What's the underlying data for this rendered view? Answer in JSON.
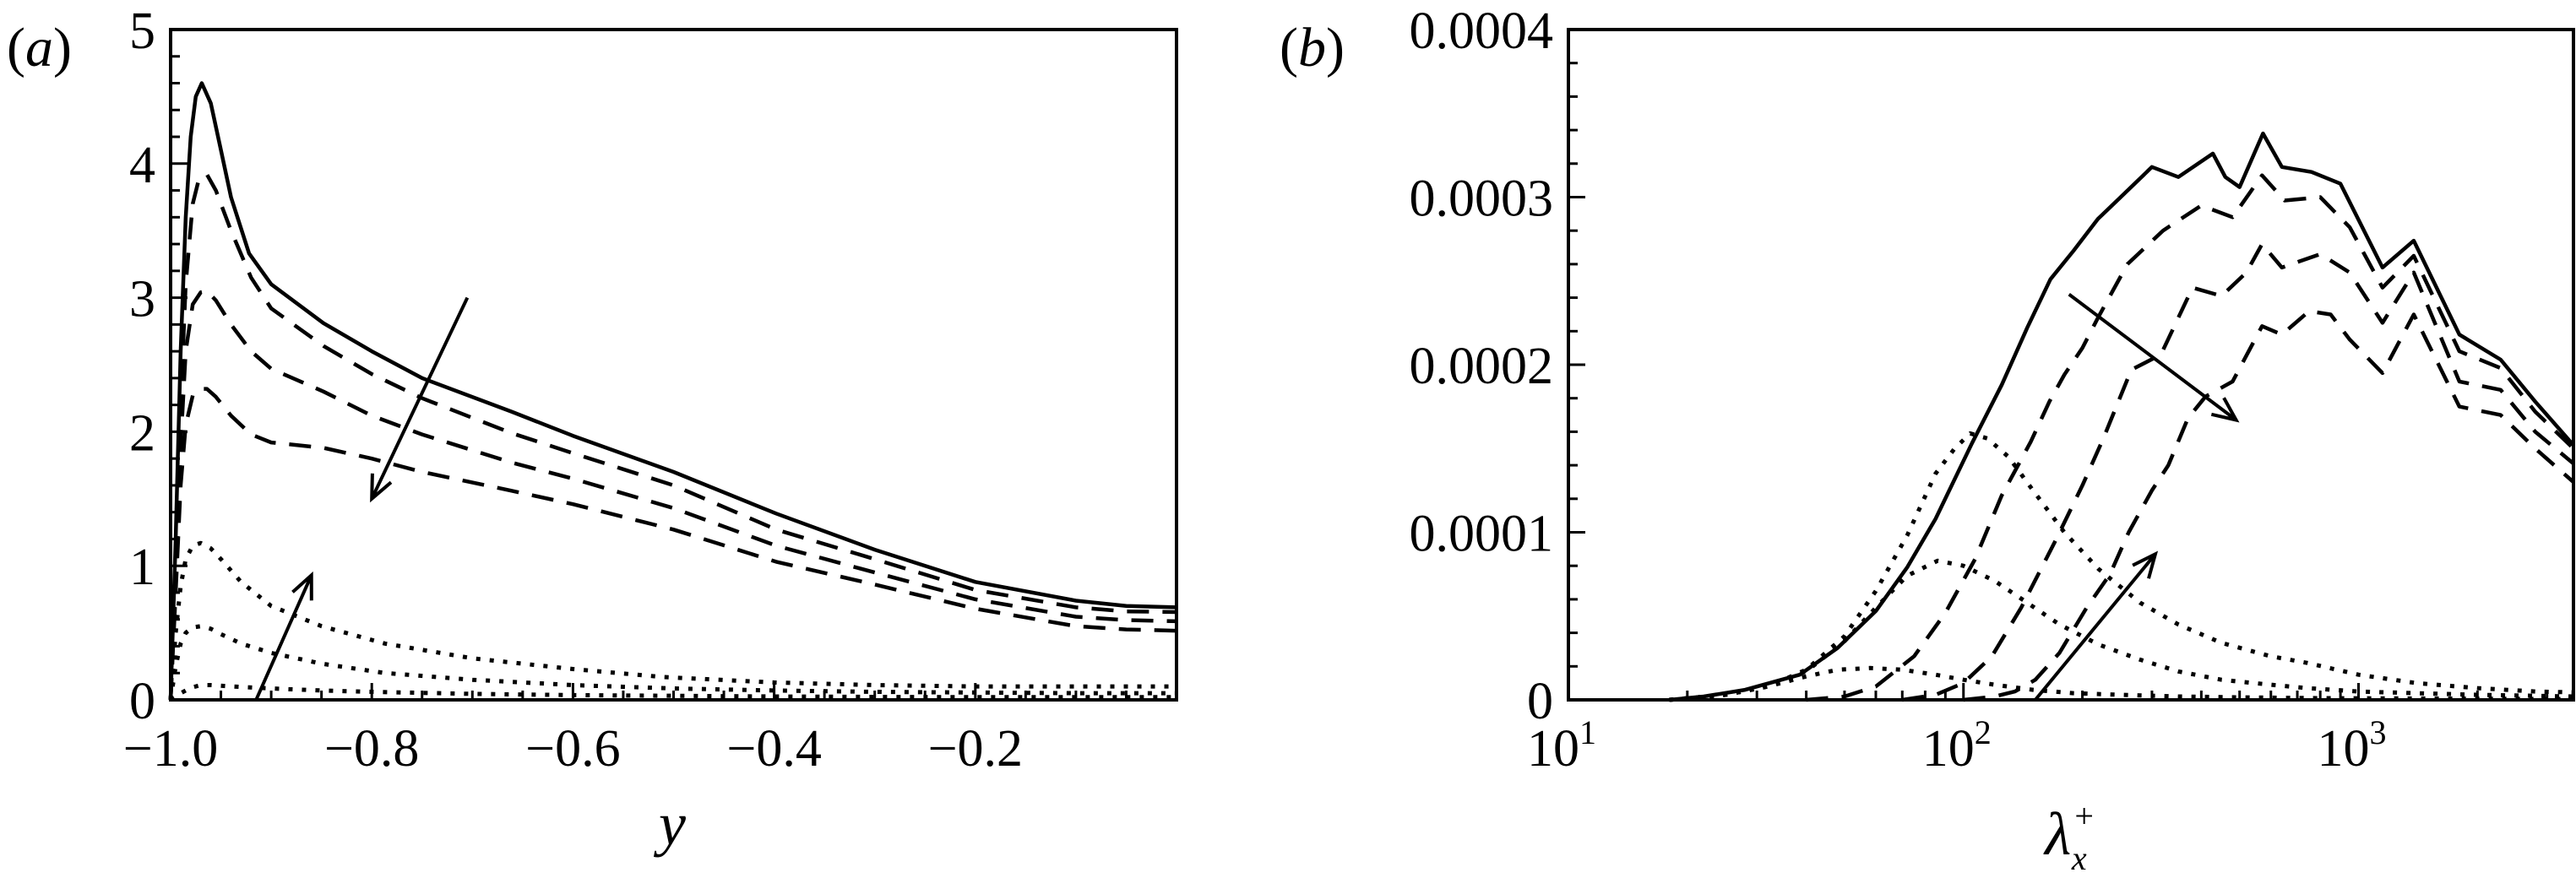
{
  "figure": {
    "panels": [
      {
        "id": "a",
        "label": "(a)"
      },
      {
        "id": "b",
        "label": "(b)"
      }
    ]
  },
  "chart_data": [
    {
      "panel": "(a)",
      "type": "line",
      "title": "",
      "xlabel": "y",
      "ylabel": "",
      "xlim": [
        -1.0,
        0.0
      ],
      "ylim": [
        0,
        5
      ],
      "grid": false,
      "legend": "none",
      "xticks": [
        -1.0,
        -0.8,
        -0.6,
        -0.4,
        -0.2
      ],
      "xtick_labels": [
        "−1.0",
        "−0.8",
        "−0.6",
        "−0.4",
        "−0.2"
      ],
      "yticks": [
        0,
        1,
        2,
        3,
        4,
        5
      ],
      "ytick_labels": [
        "0",
        "1",
        "2",
        "3",
        "4",
        "5"
      ],
      "series": [
        {
          "name": "solid",
          "style": "solid",
          "x": [
            -1.0,
            -0.995,
            -0.99,
            -0.985,
            -0.98,
            -0.975,
            -0.969,
            -0.96,
            -0.95,
            -0.94,
            -0.922,
            -0.9,
            -0.848,
            -0.8,
            -0.75,
            -0.661,
            -0.6,
            -0.5,
            -0.418,
            -0.398,
            -0.3,
            -0.2,
            -0.1,
            -0.05,
            0.0
          ],
          "y": [
            0.0,
            1.2,
            2.6,
            3.6,
            4.2,
            4.5,
            4.6,
            4.45,
            4.1,
            3.75,
            3.33,
            3.1,
            2.81,
            2.6,
            2.4,
            2.15,
            1.97,
            1.7,
            1.45,
            1.39,
            1.12,
            0.88,
            0.74,
            0.7,
            0.69
          ]
        },
        {
          "name": "dashed-1",
          "style": "dashed",
          "x": [
            -1.0,
            -0.995,
            -0.99,
            -0.985,
            -0.978,
            -0.972,
            -0.964,
            -0.955,
            -0.94,
            -0.92,
            -0.9,
            -0.848,
            -0.8,
            -0.75,
            -0.661,
            -0.6,
            -0.5,
            -0.398,
            -0.3,
            -0.2,
            -0.1,
            -0.05,
            0.0
          ],
          "y": [
            0.0,
            1.0,
            2.2,
            3.1,
            3.7,
            3.88,
            3.92,
            3.8,
            3.5,
            3.15,
            2.92,
            2.64,
            2.43,
            2.25,
            1.99,
            1.84,
            1.6,
            1.27,
            1.05,
            0.82,
            0.69,
            0.66,
            0.655
          ]
        },
        {
          "name": "dashed-2",
          "style": "dashed",
          "x": [
            -1.0,
            -0.995,
            -0.99,
            -0.985,
            -0.978,
            -0.97,
            -0.964,
            -0.955,
            -0.94,
            -0.92,
            -0.9,
            -0.848,
            -0.8,
            -0.75,
            -0.661,
            -0.6,
            -0.5,
            -0.398,
            -0.3,
            -0.2,
            -0.1,
            -0.05,
            0.0
          ],
          "y": [
            0.0,
            0.9,
            1.9,
            2.6,
            2.95,
            3.04,
            3.05,
            2.98,
            2.8,
            2.6,
            2.47,
            2.3,
            2.12,
            1.98,
            1.77,
            1.65,
            1.43,
            1.15,
            0.95,
            0.75,
            0.62,
            0.595,
            0.586
          ]
        },
        {
          "name": "dashed-3",
          "style": "dashed",
          "x": [
            -1.0,
            -0.995,
            -0.99,
            -0.985,
            -0.978,
            -0.97,
            -0.964,
            -0.955,
            -0.94,
            -0.92,
            -0.9,
            -0.848,
            -0.8,
            -0.75,
            -0.661,
            -0.6,
            -0.5,
            -0.398,
            -0.3,
            -0.2,
            -0.1,
            -0.05,
            0.0
          ],
          "y": [
            0.0,
            0.8,
            1.6,
            2.05,
            2.27,
            2.32,
            2.32,
            2.26,
            2.12,
            1.98,
            1.92,
            1.88,
            1.8,
            1.7,
            1.56,
            1.46,
            1.27,
            1.03,
            0.86,
            0.68,
            0.55,
            0.525,
            0.516
          ]
        },
        {
          "name": "dotted-1",
          "style": "dotted",
          "x": [
            -1.0,
            -0.995,
            -0.99,
            -0.985,
            -0.978,
            -0.97,
            -0.96,
            -0.95,
            -0.93,
            -0.9,
            -0.85,
            -0.787,
            -0.7,
            -0.6,
            -0.51,
            -0.4,
            -0.3,
            -0.2,
            -0.1,
            0.0
          ],
          "y": [
            0.0,
            0.5,
            0.85,
            1.05,
            1.15,
            1.17,
            1.13,
            1.05,
            0.88,
            0.7,
            0.55,
            0.42,
            0.31,
            0.23,
            0.17,
            0.13,
            0.11,
            0.1,
            0.1,
            0.1
          ]
        },
        {
          "name": "dotted-2",
          "style": "dotted",
          "x": [
            -1.0,
            -0.995,
            -0.99,
            -0.985,
            -0.978,
            -0.97,
            -0.96,
            -0.95,
            -0.93,
            -0.9,
            -0.85,
            -0.787,
            -0.7,
            -0.6,
            -0.5,
            -0.4,
            -0.3,
            -0.2,
            -0.1,
            0.0
          ],
          "y": [
            0.0,
            0.25,
            0.42,
            0.5,
            0.54,
            0.55,
            0.53,
            0.49,
            0.42,
            0.35,
            0.27,
            0.2,
            0.15,
            0.11,
            0.085,
            0.07,
            0.06,
            0.055,
            0.05,
            0.05
          ]
        },
        {
          "name": "dotted-3",
          "style": "dotted",
          "x": [
            -1.0,
            -0.99,
            -0.98,
            -0.97,
            -0.96,
            -0.94,
            -0.9,
            -0.85,
            -0.8,
            -0.7,
            -0.6,
            -0.5,
            -0.4,
            -0.3,
            -0.2,
            -0.1,
            0.0
          ],
          "y": [
            0.0,
            0.05,
            0.09,
            0.11,
            0.11,
            0.1,
            0.085,
            0.07,
            0.06,
            0.045,
            0.035,
            0.03,
            0.025,
            0.022,
            0.02,
            0.02,
            0.02
          ]
        }
      ],
      "annotations": [
        {
          "type": "arrow",
          "from": [
            -0.705,
            3.0
          ],
          "to": [
            -0.8,
            1.5
          ],
          "meaning": "decreasing trend (dashed)"
        },
        {
          "type": "arrow",
          "from": [
            -0.915,
            0.0
          ],
          "to": [
            -0.86,
            0.93
          ],
          "meaning": "increasing trend (dotted)"
        }
      ]
    },
    {
      "panel": "(b)",
      "type": "line",
      "title": "",
      "xlabel": "λ",
      "xlabel_sub": "x",
      "xlabel_sup": "+",
      "ylabel": "",
      "xscale": "log",
      "xlim": [
        10,
        3500
      ],
      "ylim": [
        0,
        0.0004
      ],
      "grid": false,
      "legend": "none",
      "xticks": [
        10,
        100,
        1000
      ],
      "xtick_labels": [
        {
          "base": "10",
          "exp": "1"
        },
        {
          "base": "10",
          "exp": "2"
        },
        {
          "base": "10",
          "exp": "3"
        }
      ],
      "yticks": [
        0,
        0.0001,
        0.0002,
        0.0003,
        0.0004
      ],
      "ytick_labels": [
        "0",
        "0.0001",
        "0.0002",
        "0.0003",
        "0.0004"
      ],
      "series": [
        {
          "name": "solid",
          "style": "solid",
          "x": [
            18,
            22,
            28,
            38.5,
            48,
            60,
            72,
            85,
            105,
            125,
            145,
            166,
            190,
            219,
            250,
            300,
            350,
            428,
            460,
            500,
            573,
            640,
            760,
            900,
            1150,
            1380,
            1800,
            2290,
            2800,
            3500
          ],
          "y": [
            0.0,
            2e-06,
            6e-06,
            1.5e-05,
            3.1e-05,
            5.3e-05,
            7.9e-05,
            0.000108,
            0.000153,
            0.000188,
            0.000222,
            0.000251,
            0.000268,
            0.000287,
            0.0003,
            0.000318,
            0.000312,
            0.000326,
            0.000312,
            0.000306,
            0.000338,
            0.000318,
            0.000315,
            0.000308,
            0.000258,
            0.000274,
            0.000218,
            0.000203,
            0.000178,
            0.000152
          ]
        },
        {
          "name": "dashed-1",
          "style": "dashed",
          "x": [
            40,
            50,
            60,
            75,
            90,
            107,
            125,
            148,
            165,
            180,
            200,
            219,
            260,
            320,
            400,
            480,
            570,
            650,
            800,
            950,
            1150,
            1380,
            1800,
            2290,
            2800,
            3500
          ],
          "y": [
            0.0,
            2e-06,
            8e-06,
            2.6e-05,
            5.2e-05,
            8.4e-05,
            0.000122,
            0.000154,
            0.000178,
            0.000194,
            0.00021,
            0.000228,
            0.00026,
            0.00028,
            0.000295,
            0.000288,
            0.000313,
            0.000298,
            0.0003,
            0.000282,
            0.000246,
            0.000265,
            0.000208,
            0.000198,
            0.000172,
            0.00015
          ]
        },
        {
          "name": "dashed-2",
          "style": "dashed",
          "x": [
            70,
            85,
            100,
            118,
            140,
            171,
            200,
            226,
            266,
            316,
            380,
            450,
            520,
            570,
            640,
            800,
            950,
            1150,
            1380,
            1800,
            2290,
            2800,
            3500
          ],
          "y": [
            0.0,
            3e-06,
            1e-05,
            2.6e-05,
            5.5e-05,
            9.5e-05,
            0.000128,
            0.000156,
            0.000197,
            0.000206,
            0.000246,
            0.000241,
            0.000255,
            0.000272,
            0.000258,
            0.000266,
            0.000255,
            0.000225,
            0.000255,
            0.00019,
            0.000185,
            0.00016,
            0.000141
          ]
        },
        {
          "name": "dashed-3",
          "style": "dashed",
          "x": [
            100,
            120,
            135,
            152,
            175,
            205,
            235,
            262,
            300,
            330,
            370,
            410,
            480,
            570,
            640,
            750,
            850,
            950,
            1150,
            1380,
            1800,
            2290,
            2800,
            3500
          ],
          "y": [
            0.0,
            2e-06,
            5e-06,
            1.2e-05,
            2.8e-05,
            5.5e-05,
            7.5e-05,
            0.0001,
            0.000125,
            0.00014,
            0.000168,
            0.000181,
            0.00019,
            0.000223,
            0.000218,
            0.000232,
            0.00023,
            0.000215,
            0.000195,
            0.00023,
            0.000175,
            0.00017,
            0.00015,
            0.00013
          ]
        },
        {
          "name": "dotted-1",
          "style": "dotted",
          "x": [
            18,
            25,
            32,
            40,
            50,
            60,
            72,
            85,
            95,
            104,
            115,
            130,
            150,
            180,
            220,
            280,
            350,
            450,
            600,
            743,
            1000,
            1400,
            2000,
            2800,
            3500
          ],
          "y": [
            0.0,
            3e-06,
            8e-06,
            1.8e-05,
            3.8e-05,
            6.5e-05,
            9.8e-05,
            0.000135,
            0.00015,
            0.000159,
            0.000156,
            0.000145,
            0.000125,
            0.0001,
            7.8e-05,
            5.8e-05,
            4.5e-05,
            3.4e-05,
            2.6e-05,
            2.2e-05,
            1.5e-05,
            1e-05,
            7e-06,
            5e-06,
            4.5e-06
          ]
        },
        {
          "name": "dotted-2",
          "style": "dotted",
          "x": [
            18,
            25,
            32,
            40,
            50,
            60,
            72,
            86,
            100,
            120,
            145,
            175,
            220,
            280,
            350,
            450,
            600,
            743,
            1000,
            1400,
            2000,
            3500
          ],
          "y": [
            0.0,
            3e-06,
            8e-06,
            1.7e-05,
            3.5e-05,
            5.5e-05,
            7.4e-05,
            8.3e-05,
            8e-05,
            7.1e-05,
            5.8e-05,
            4.5e-05,
            3.3e-05,
            2.4e-05,
            1.7e-05,
            1.2e-05,
            9e-06,
            7e-06,
            5e-06,
            4e-06,
            3e-06,
            2e-06
          ]
        },
        {
          "name": "dotted-3",
          "style": "dotted",
          "x": [
            18,
            25,
            32,
            40,
            48,
            58,
            70,
            85,
            100,
            120,
            150,
            190,
            250,
            350,
            500,
            800,
            1500,
            3500
          ],
          "y": [
            0.0,
            3e-06,
            8e-06,
            1.4e-05,
            1.8e-05,
            1.9e-05,
            1.8e-05,
            1.5e-05,
            1.2e-05,
            9e-06,
            6e-06,
            4e-06,
            3e-06,
            2e-06,
            1.5e-06,
            1e-06,
            8e-07,
            5e-07
          ]
        }
      ],
      "annotations": [
        {
          "type": "arrow",
          "from": [
            185,
            0.000242
          ],
          "to": [
            490,
            0.000167
          ],
          "meaning": "decreasing trend (dashed)"
        },
        {
          "type": "arrow",
          "from": [
            152,
            0.0
          ],
          "to": [
            306,
            8.7e-05
          ],
          "meaning": "increasing trend (dotted)"
        }
      ]
    }
  ]
}
